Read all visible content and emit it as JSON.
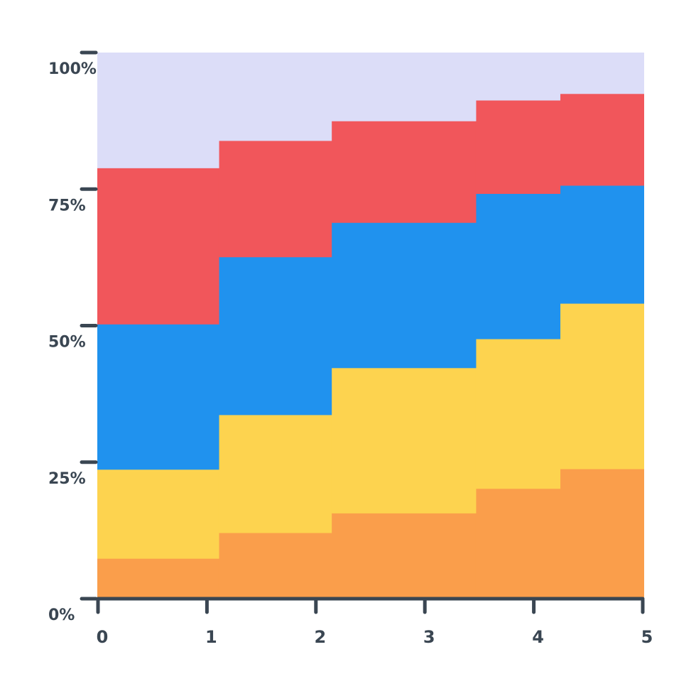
{
  "chart_data": {
    "type": "area",
    "stacking": "percent",
    "step": true,
    "title": "",
    "xlabel": "",
    "ylabel": "",
    "x_ticks": [
      "0",
      "1",
      "2",
      "3",
      "4",
      "5"
    ],
    "y_ticks": [
      "0%",
      "25%",
      "50%",
      "75%",
      "100%"
    ],
    "ylim": [
      0,
      100
    ],
    "xlim": [
      0,
      5
    ],
    "grid": false,
    "legend": "none",
    "bands_x_start": [
      0,
      1.11,
      2.14,
      3.46,
      4.23
    ],
    "series": [
      {
        "color": "#FA9E4B",
        "values": [
          7.4,
          12.1,
          15.7,
          20.2,
          23.8
        ]
      },
      {
        "color": "#FDD34F",
        "values": [
          16.3,
          21.6,
          26.6,
          27.4,
          30.3
        ]
      },
      {
        "color": "#2092EE",
        "values": [
          26.6,
          28.9,
          26.6,
          26.6,
          21.6
        ]
      },
      {
        "color": "#F1565B",
        "values": [
          28.6,
          21.3,
          18.6,
          17.1,
          16.8
        ]
      },
      {
        "color": "#DCDDF8",
        "values": [
          21.1,
          16.1,
          12.5,
          8.7,
          7.5
        ]
      }
    ]
  }
}
